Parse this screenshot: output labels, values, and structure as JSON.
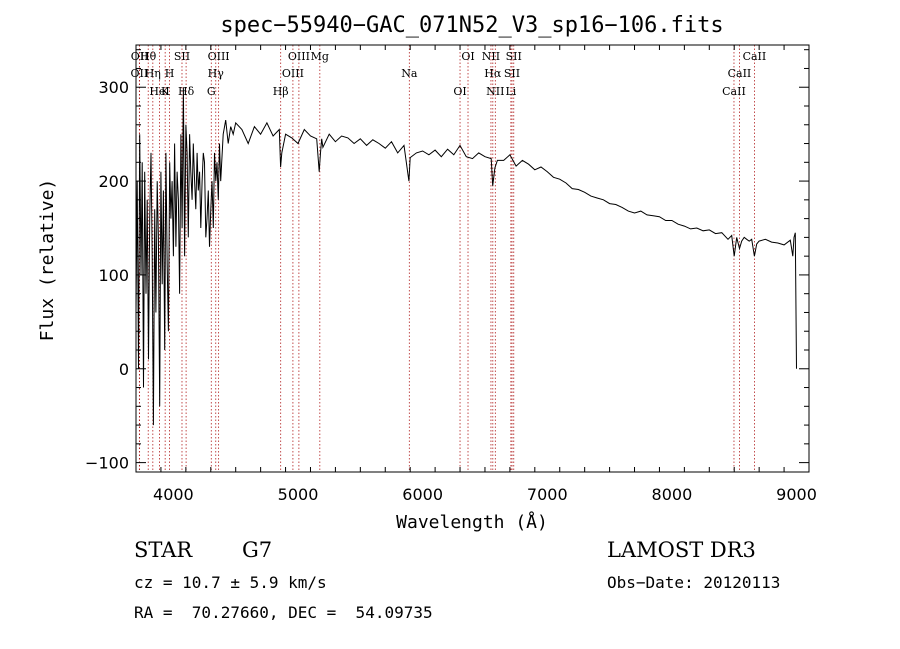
{
  "chart_data": {
    "type": "line",
    "title": "spec−55940−GAC_071N52_V3_sp16−106.fits",
    "xlabel": "Wavelength (Å)",
    "ylabel": "Flux (relative)",
    "xlim": [
      3700,
      9100
    ],
    "ylim": [
      -110,
      345
    ],
    "xticks": [
      4000,
      5000,
      6000,
      7000,
      8000,
      9000
    ],
    "xtick_labels": [
      "4000",
      "5000",
      "6000",
      "7000",
      "8000",
      "9000"
    ],
    "yticks": [
      -100,
      0,
      100,
      200,
      300
    ],
    "ytick_labels": [
      "−100",
      "0",
      "100",
      "200",
      "300"
    ],
    "line_color": "#000000",
    "marker_color": "#b22222",
    "series": [
      {
        "name": "flux",
        "x": [
          3700,
          3710,
          3720,
          3730,
          3740,
          3750,
          3760,
          3770,
          3780,
          3790,
          3800,
          3810,
          3820,
          3830,
          3840,
          3850,
          3860,
          3870,
          3880,
          3890,
          3900,
          3910,
          3920,
          3930,
          3940,
          3950,
          3960,
          3970,
          3980,
          3990,
          4000,
          4010,
          4020,
          4030,
          4040,
          4050,
          4060,
          4070,
          4080,
          4090,
          4100,
          4110,
          4120,
          4130,
          4140,
          4150,
          4160,
          4170,
          4180,
          4190,
          4200,
          4210,
          4220,
          4230,
          4240,
          4250,
          4260,
          4270,
          4280,
          4290,
          4300,
          4310,
          4320,
          4330,
          4340,
          4350,
          4360,
          4370,
          4380,
          4400,
          4420,
          4440,
          4460,
          4480,
          4500,
          4550,
          4600,
          4650,
          4700,
          4750,
          4800,
          4850,
          4860,
          4870,
          4900,
          4950,
          5000,
          5050,
          5100,
          5150,
          5170,
          5180,
          5190,
          5200,
          5250,
          5300,
          5350,
          5400,
          5450,
          5500,
          5550,
          5600,
          5650,
          5700,
          5750,
          5800,
          5850,
          5890,
          5900,
          5950,
          6000,
          6050,
          6100,
          6150,
          6200,
          6250,
          6300,
          6350,
          6400,
          6450,
          6500,
          6550,
          6562,
          6580,
          6600,
          6650,
          6700,
          6750,
          6800,
          6850,
          6900,
          6950,
          7000,
          7050,
          7100,
          7150,
          7200,
          7250,
          7300,
          7350,
          7400,
          7450,
          7500,
          7550,
          7600,
          7650,
          7700,
          7750,
          7800,
          7850,
          7900,
          7950,
          8000,
          8050,
          8100,
          8150,
          8200,
          8250,
          8300,
          8350,
          8400,
          8450,
          8480,
          8500,
          8520,
          8542,
          8560,
          8580,
          8600,
          8620,
          8640,
          8662,
          8680,
          8700,
          8750,
          8800,
          8850,
          8900,
          8950,
          8970,
          8980,
          8990,
          9000
        ],
        "y": [
          60,
          200,
          0,
          250,
          100,
          220,
          -20,
          210,
          80,
          180,
          10,
          160,
          230,
          120,
          -60,
          170,
          60,
          200,
          140,
          -40,
          210,
          90,
          190,
          20,
          230,
          110,
          40,
          220,
          160,
          200,
          120,
          240,
          130,
          210,
          180,
          80,
          250,
          150,
          300,
          120,
          260,
          230,
          140,
          250,
          210,
          180,
          240,
          200,
          170,
          230,
          190,
          210,
          150,
          200,
          230,
          220,
          140,
          160,
          190,
          130,
          170,
          200,
          150,
          230,
          200,
          220,
          180,
          240,
          200,
          250,
          265,
          240,
          258,
          250,
          262,
          255,
          240,
          258,
          250,
          262,
          248,
          255,
          215,
          230,
          250,
          246,
          240,
          255,
          248,
          245,
          210,
          230,
          245,
          236,
          250,
          242,
          248,
          246,
          240,
          245,
          238,
          244,
          240,
          235,
          242,
          230,
          238,
          200,
          225,
          230,
          232,
          228,
          233,
          226,
          234,
          228,
          238,
          226,
          224,
          230,
          226,
          224,
          195,
          214,
          222,
          222,
          228,
          216,
          222,
          218,
          212,
          215,
          210,
          204,
          202,
          198,
          192,
          191,
          188,
          184,
          182,
          180,
          176,
          175,
          172,
          168,
          166,
          168,
          164,
          163,
          162,
          158,
          158,
          154,
          152,
          149,
          150,
          147,
          148,
          144,
          145,
          138,
          142,
          120,
          140,
          128,
          136,
          140,
          138,
          136,
          138,
          120,
          133,
          136,
          138,
          135,
          134,
          132,
          137,
          120,
          140,
          145,
          0
        ]
      }
    ],
    "line_markers": [
      {
        "label": "Hθ",
        "x": 3798
      },
      {
        "label": "OII",
        "x": 3727
      },
      {
        "label": "HeI",
        "x": 3889
      },
      {
        "label": "OII",
        "x": 3729
      },
      {
        "label": "Hη",
        "x": 3835
      },
      {
        "label": "K",
        "x": 3934
      },
      {
        "label": "SII",
        "x": 4069
      },
      {
        "label": "H",
        "x": 3969
      },
      {
        "label": "Hδ",
        "x": 4102
      },
      {
        "label": "OIII",
        "x": 4363
      },
      {
        "label": "Hγ",
        "x": 4340
      },
      {
        "label": "G",
        "x": 4304
      },
      {
        "label": "OIII",
        "x": 5007
      },
      {
        "label": "OIII",
        "x": 4959
      },
      {
        "label": "Hβ",
        "x": 4861
      },
      {
        "label": "Mg",
        "x": 5175
      },
      {
        "label": "Na",
        "x": 5893
      },
      {
        "label": "OI",
        "x": 6300
      },
      {
        "label": "OI",
        "x": 6364
      },
      {
        "label": "Hα",
        "x": 6563
      },
      {
        "label": "NII",
        "x": 6583
      },
      {
        "label": "NII",
        "x": 6548
      },
      {
        "label": "SII",
        "x": 6717
      },
      {
        "label": "Li",
        "x": 6708
      },
      {
        "label": "SII",
        "x": 6731
      },
      {
        "label": "CaII",
        "x": 8542
      },
      {
        "label": "CaII",
        "x": 8498
      },
      {
        "label": "CaII",
        "x": 8662
      }
    ]
  },
  "info": {
    "object_class": "STAR",
    "subclass": "G7",
    "survey": "LAMOST DR3",
    "redshift": "cz = 10.7 ± 5.9 km/s",
    "obs_date": "Obs−Date: 20120113",
    "coordinates": "RA =  70.27660, DEC =  54.09735"
  }
}
